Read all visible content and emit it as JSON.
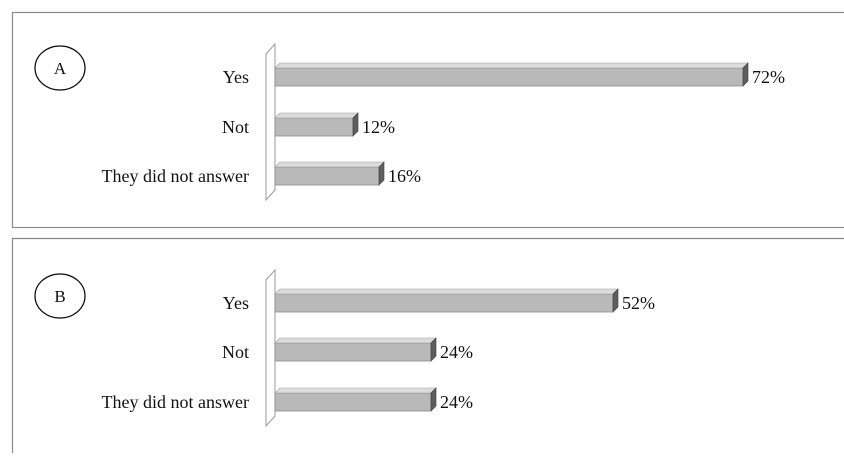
{
  "chart_data": [
    {
      "type": "bar",
      "orientation": "horizontal",
      "panel_label": "A",
      "categories": [
        "Yes",
        "Not",
        "They did not answer"
      ],
      "values": [
        72,
        12,
        16
      ],
      "data_labels": [
        "72%",
        "12%",
        "16%"
      ],
      "xlim": [
        0,
        100
      ],
      "unit": "%",
      "grid": false,
      "legend": "none"
    },
    {
      "type": "bar",
      "orientation": "horizontal",
      "panel_label": "B",
      "categories": [
        "Yes",
        "Not",
        "They did not answer"
      ],
      "values": [
        52,
        24,
        24
      ],
      "data_labels": [
        "52%",
        "24%",
        "24%"
      ],
      "xlim": [
        0,
        100
      ],
      "unit": "%",
      "grid": false,
      "legend": "none"
    }
  ],
  "colors": {
    "bar_fill": "#b9b9b9",
    "bar_top": "#dcdcdc",
    "bar_side": "#5e5e5e",
    "border": "#8a8a8a",
    "wall": "#9a9a9a"
  }
}
